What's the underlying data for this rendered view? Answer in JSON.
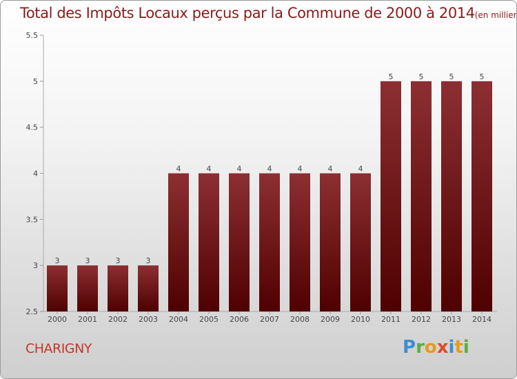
{
  "chart_data": {
    "type": "bar",
    "title": "Total des Impôts Locaux perçus par la Commune de 2000 à 2014",
    "subtitle": "(en milliers d'€)",
    "categories": [
      "2000",
      "2001",
      "2002",
      "2003",
      "2004",
      "2005",
      "2006",
      "2007",
      "2008",
      "2009",
      "2010",
      "2011",
      "2012",
      "2013",
      "2014"
    ],
    "values": [
      3,
      3,
      3,
      3,
      4,
      4,
      4,
      4,
      4,
      4,
      4,
      5,
      5,
      5,
      5
    ],
    "data_labels": [
      "3",
      "3",
      "3",
      "3",
      "4",
      "4",
      "4",
      "4",
      "4",
      "4",
      "4",
      "5",
      "5",
      "5",
      "5"
    ],
    "ylim": [
      2.5,
      5.5
    ],
    "yticks": [
      2.5,
      3,
      3.5,
      4,
      4.5,
      5,
      5.5
    ],
    "ytick_labels": [
      "2.5",
      "3",
      "3.5",
      "4",
      "4.5",
      "5",
      "5.5"
    ],
    "grid": false,
    "bar_color": "#7a1a1a"
  },
  "footer": {
    "commune": "CHARIGNY",
    "logo_letters": [
      "P",
      "r",
      "o",
      "x",
      "i",
      "t",
      "i"
    ],
    "logo_colors": [
      "#3a8fd0",
      "#5cae3c",
      "#e89a1c",
      "#e04a2a",
      "#3a8fd0",
      "#e89a1c",
      "#5cae3c"
    ]
  }
}
